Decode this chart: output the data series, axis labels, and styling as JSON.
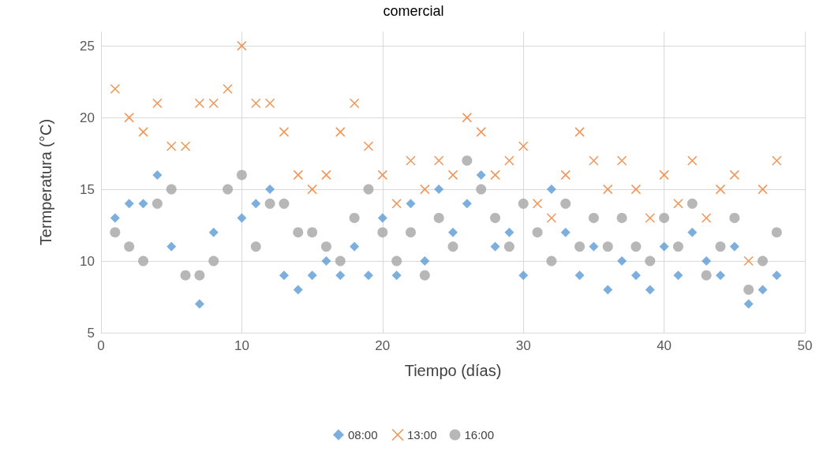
{
  "chart_data": {
    "type": "scatter",
    "title": "comercial",
    "xlabel": "Tiempo (días)",
    "ylabel": "Termperatura (°C)",
    "x": [
      1,
      2,
      3,
      4,
      5,
      6,
      7,
      8,
      9,
      10,
      11,
      12,
      13,
      14,
      15,
      16,
      17,
      18,
      19,
      20,
      21,
      22,
      23,
      24,
      25,
      26,
      27,
      28,
      29,
      30,
      31,
      32,
      33,
      34,
      35,
      36,
      37,
      38,
      39,
      40,
      41,
      42,
      43,
      44,
      45,
      46,
      47,
      48
    ],
    "series": [
      {
        "name": "08:00",
        "color": "#5b9bd5",
        "marker": "diamond",
        "values": [
          13,
          14,
          14,
          16,
          11,
          null,
          7,
          12,
          null,
          13,
          14,
          15,
          9,
          8,
          9,
          10,
          9,
          11,
          9,
          13,
          9,
          14,
          10,
          15,
          12,
          14,
          16,
          11,
          12,
          9,
          null,
          15,
          12,
          9,
          11,
          8,
          10,
          9,
          8,
          11,
          9,
          12,
          10,
          9,
          11,
          7,
          8,
          9
        ]
      },
      {
        "name": "13:00",
        "color": "#ed7d31",
        "marker": "cross",
        "values": [
          22,
          20,
          19,
          21,
          18,
          18,
          21,
          21,
          22,
          25,
          21,
          21,
          19,
          16,
          15,
          16,
          19,
          21,
          18,
          16,
          14,
          17,
          15,
          17,
          16,
          20,
          19,
          16,
          17,
          18,
          14,
          13,
          16,
          19,
          17,
          15,
          17,
          15,
          13,
          16,
          14,
          17,
          13,
          15,
          16,
          10,
          15,
          17
        ]
      },
      {
        "name": "16:00",
        "color": "#a5a5a5",
        "marker": "circle",
        "values": [
          12,
          11,
          10,
          14,
          15,
          9,
          9,
          10,
          15,
          16,
          11,
          14,
          14,
          12,
          12,
          11,
          10,
          13,
          15,
          12,
          10,
          12,
          9,
          13,
          11,
          17,
          15,
          13,
          11,
          14,
          12,
          10,
          14,
          11,
          13,
          11,
          13,
          11,
          10,
          13,
          11,
          14,
          9,
          11,
          13,
          8,
          10,
          12
        ]
      }
    ],
    "xlim": [
      0,
      50
    ],
    "xticks": [
      0,
      10,
      20,
      30,
      40,
      50
    ],
    "ylim": [
      5,
      26
    ],
    "yticks": [
      5,
      10,
      15,
      20,
      25
    ],
    "grid": true,
    "legend": "bottom"
  }
}
